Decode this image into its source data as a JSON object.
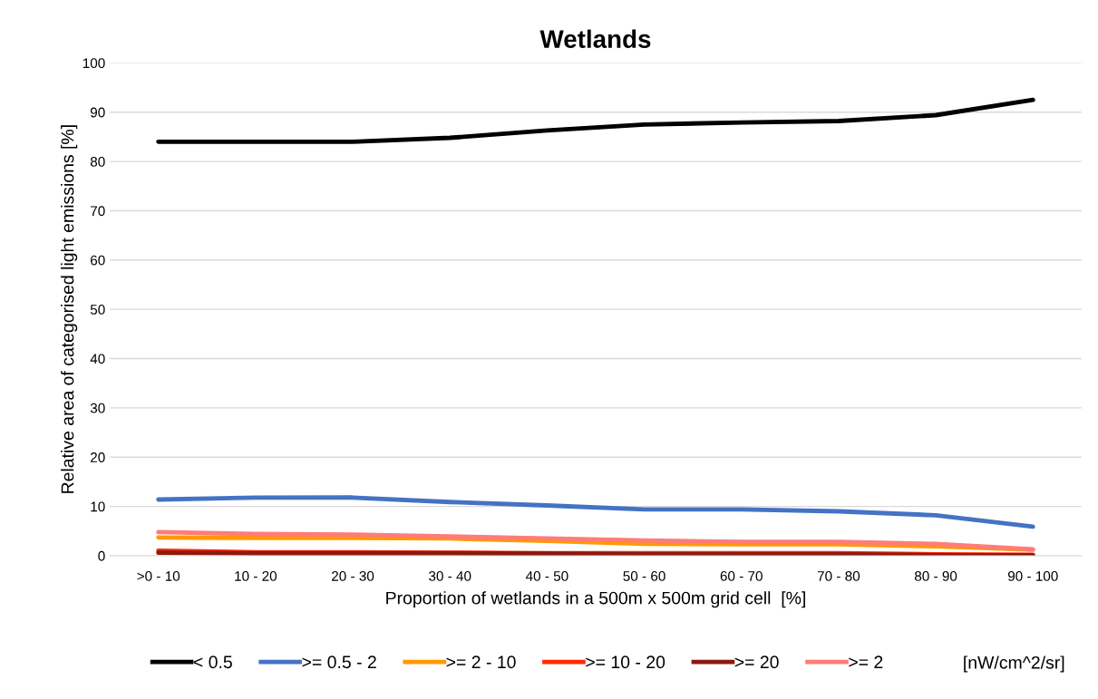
{
  "chart_data": {
    "type": "line",
    "title": "Wetlands",
    "xlabel": "Proportion of wetlands in a 500m x 500m grid cell  [%]",
    "ylabel": "Relative area of categorised light emissions [%]",
    "categories": [
      ">0 - 10",
      "10 - 20",
      "20 - 30",
      "30 - 40",
      "40 - 50",
      "50 - 60",
      "60 - 70",
      "70 - 80",
      "80 - 90",
      "90 - 100"
    ],
    "series": [
      {
        "name": "< 0.5",
        "color": "#000000",
        "values": [
          84.0,
          84.0,
          84.0,
          84.8,
          86.3,
          87.5,
          87.9,
          88.2,
          89.4,
          92.5
        ]
      },
      {
        "name": ">= 0.5 - 2",
        "color": "#4472c4",
        "values": [
          11.4,
          11.8,
          11.8,
          10.9,
          10.2,
          9.4,
          9.4,
          9.0,
          8.2,
          5.9
        ]
      },
      {
        "name": ">= 2 - 10",
        "color": "#ff9900",
        "values": [
          3.7,
          3.6,
          3.6,
          3.5,
          3.0,
          2.4,
          2.3,
          2.3,
          1.9,
          1.2
        ]
      },
      {
        "name": ">= 10 - 20",
        "color": "#ff2a00",
        "values": [
          1.0,
          0.7,
          0.7,
          0.6,
          0.5,
          0.5,
          0.5,
          0.5,
          0.3,
          0.2
        ]
      },
      {
        "name": ">= 20",
        "color": "#8b1a0e",
        "values": [
          0.6,
          0.5,
          0.5,
          0.5,
          0.4,
          0.3,
          0.3,
          0.3,
          0.1,
          0.1
        ]
      },
      {
        "name": ">= 2",
        "color": "#ff7c78",
        "values": [
          4.8,
          4.4,
          4.3,
          3.9,
          3.5,
          3.1,
          2.8,
          2.8,
          2.4,
          1.3
        ]
      }
    ],
    "ylim": [
      0,
      100
    ],
    "yticks": [
      0,
      10,
      20,
      30,
      40,
      50,
      60,
      70,
      80,
      90,
      100
    ],
    "grid": "y",
    "legend": "bottom",
    "marker": "none",
    "line_style": "solid",
    "annotations": [
      "[nW/cm^2/sr]"
    ]
  }
}
